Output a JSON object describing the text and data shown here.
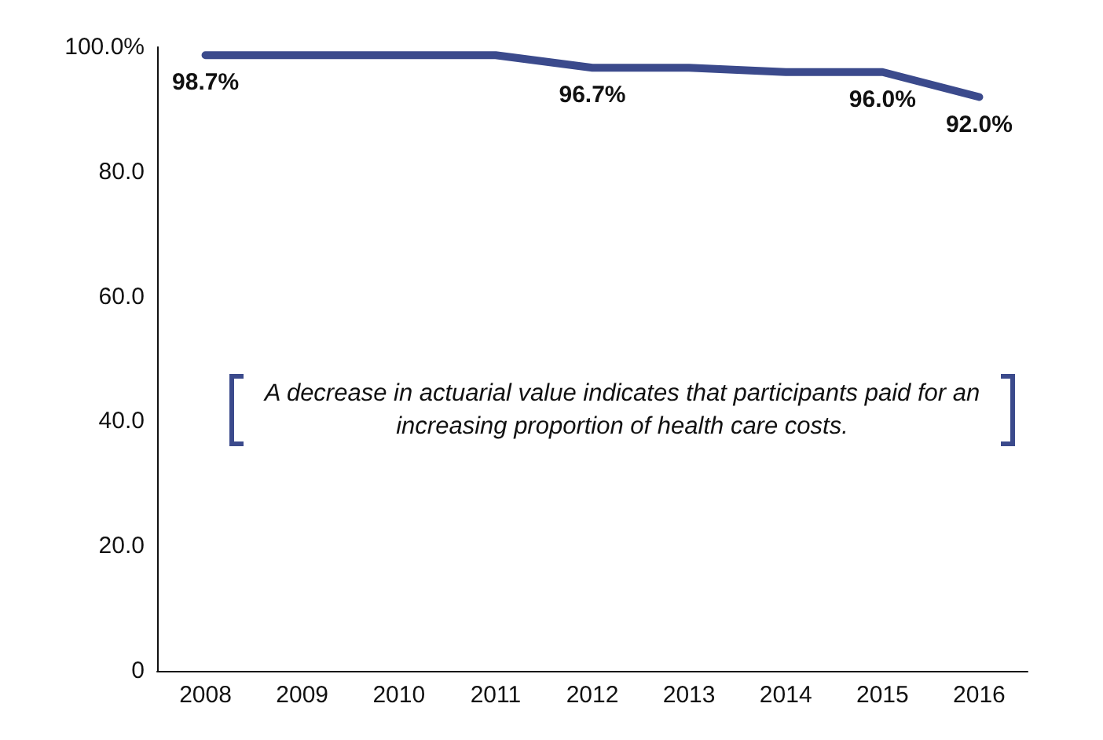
{
  "chart_data": {
    "type": "line",
    "categories": [
      "2008",
      "2009",
      "2010",
      "2011",
      "2012",
      "2013",
      "2014",
      "2015",
      "2016"
    ],
    "series": [
      {
        "color": "#3b4a8c",
        "values": [
          98.7,
          98.7,
          98.7,
          98.7,
          96.7,
          96.7,
          96.0,
          96.0,
          92.0
        ],
        "value_labels": [
          "98.7%",
          null,
          null,
          null,
          "96.7%",
          null,
          null,
          "96.0%",
          "92.0%"
        ]
      }
    ],
    "ylim": [
      0,
      100
    ],
    "yticks": [
      {
        "value": 0,
        "label": "0"
      },
      {
        "value": 20,
        "label": "20.0"
      },
      {
        "value": 40,
        "label": "40.0"
      },
      {
        "value": 60,
        "label": "60.0"
      },
      {
        "value": 80,
        "label": "80.0"
      },
      {
        "value": 100,
        "label": "100.0%"
      }
    ],
    "annotations": [
      "A decrease in actuarial value indicates that participants paid for an increasing proportion of health care costs."
    ],
    "grid": false,
    "marker": "none",
    "line_style": "solid"
  }
}
